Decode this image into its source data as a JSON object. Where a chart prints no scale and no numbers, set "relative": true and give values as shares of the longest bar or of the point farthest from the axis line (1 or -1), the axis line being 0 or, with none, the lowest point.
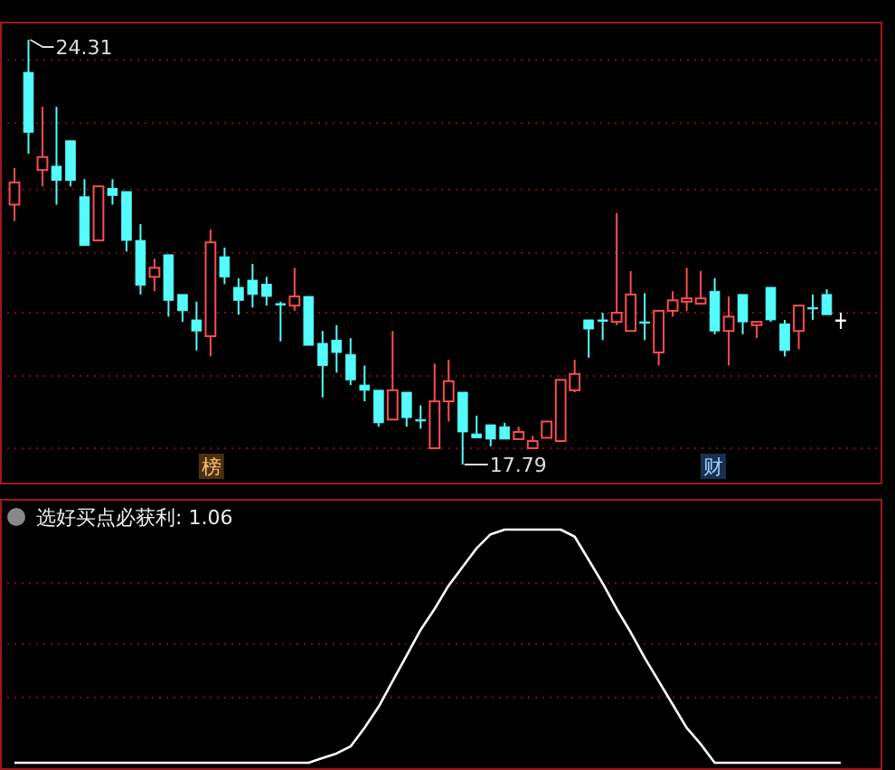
{
  "chart_data": [
    {
      "type": "candlestick",
      "categories": [
        null,
        null,
        null,
        null,
        null,
        null,
        null,
        null,
        null,
        null,
        null,
        null,
        null,
        null,
        null,
        null,
        null,
        null,
        null,
        null,
        null,
        null,
        null,
        null,
        null,
        null,
        null,
        null,
        null,
        null,
        null,
        null,
        null,
        null,
        null,
        null,
        null,
        null,
        null,
        null,
        null,
        null,
        null,
        null,
        null,
        null,
        null,
        null,
        null,
        null,
        null,
        null,
        null,
        null,
        null,
        null,
        null,
        null,
        null,
        null
      ],
      "ohlc": [
        [
          21.78,
          22.34,
          21.53,
          22.12
        ],
        [
          23.81,
          24.31,
          22.56,
          22.89
        ],
        [
          22.31,
          23.28,
          22.06,
          22.51
        ],
        [
          22.37,
          23.28,
          21.78,
          22.15
        ],
        [
          22.76,
          22.76,
          22.06,
          22.15
        ],
        [
          21.9,
          22.17,
          21.15,
          21.15
        ],
        [
          21.23,
          22.06,
          21.23,
          22.06
        ],
        [
          22.03,
          22.17,
          21.78,
          21.92
        ],
        [
          21.98,
          21.98,
          21.06,
          21.23
        ],
        [
          21.23,
          21.48,
          20.4,
          20.54
        ],
        [
          20.67,
          20.95,
          20.45,
          20.81
        ],
        [
          21.01,
          21.01,
          20.06,
          20.31
        ],
        [
          20.4,
          20.4,
          19.98,
          20.15
        ],
        [
          20.01,
          20.29,
          19.54,
          19.84
        ],
        [
          19.76,
          21.4,
          19.45,
          21.2
        ],
        [
          20.98,
          21.12,
          20.56,
          20.67
        ],
        [
          20.51,
          20.65,
          20.09,
          20.31
        ],
        [
          20.62,
          20.87,
          20.2,
          20.4
        ],
        [
          20.56,
          20.67,
          20.23,
          20.37
        ],
        [
          20.26,
          20.29,
          19.68,
          20.26
        ],
        [
          20.23,
          20.81,
          20.15,
          20.37
        ],
        [
          20.37,
          20.37,
          19.62,
          19.62
        ],
        [
          19.65,
          19.84,
          18.82,
          19.31
        ],
        [
          19.7,
          19.93,
          19.2,
          19.51
        ],
        [
          19.48,
          19.73,
          19.01,
          19.09
        ],
        [
          19.01,
          19.31,
          18.76,
          18.93
        ],
        [
          18.93,
          18.93,
          18.37,
          18.43
        ],
        [
          18.48,
          19.84,
          18.48,
          18.93
        ],
        [
          18.9,
          18.9,
          18.37,
          18.51
        ],
        [
          18.48,
          18.7,
          18.34,
          18.48
        ],
        [
          18.04,
          19.34,
          18.04,
          18.76
        ],
        [
          18.76,
          19.4,
          18.45,
          19.07
        ],
        [
          18.9,
          18.9,
          17.79,
          18.29
        ],
        [
          18.26,
          18.54,
          18.2,
          18.2
        ],
        [
          18.4,
          18.4,
          18.07,
          18.18
        ],
        [
          18.37,
          18.43,
          18.18,
          18.18
        ],
        [
          18.18,
          18.37,
          18.18,
          18.29
        ],
        [
          18.04,
          18.23,
          18.04,
          18.15
        ],
        [
          18.2,
          18.45,
          18.2,
          18.45
        ],
        [
          18.15,
          19.09,
          18.15,
          19.09
        ],
        [
          18.93,
          19.4,
          18.9,
          19.18
        ],
        [
          20.01,
          20.01,
          19.43,
          19.87
        ],
        [
          20.01,
          20.12,
          19.7,
          20.01
        ],
        [
          19.98,
          21.65,
          19.93,
          20.12
        ],
        [
          19.84,
          20.76,
          19.84,
          20.4
        ],
        [
          19.98,
          20.42,
          19.7,
          19.98
        ],
        [
          19.51,
          20.15,
          19.31,
          20.15
        ],
        [
          20.15,
          20.45,
          20.06,
          20.31
        ],
        [
          20.29,
          20.81,
          20.15,
          20.34
        ],
        [
          20.26,
          20.76,
          20.26,
          20.34
        ],
        [
          20.45,
          20.65,
          19.79,
          19.84
        ],
        [
          19.84,
          20.37,
          19.31,
          20.06
        ],
        [
          20.4,
          20.4,
          19.79,
          19.98
        ],
        [
          19.93,
          19.98,
          19.73,
          19.98
        ],
        [
          20.51,
          20.51,
          19.98,
          20.01
        ],
        [
          19.95,
          20.01,
          19.45,
          19.54
        ],
        [
          19.84,
          20.23,
          19.56,
          20.23
        ],
        [
          20.2,
          20.4,
          20.01,
          20.2
        ],
        [
          20.4,
          20.48,
          20.09,
          20.09
        ],
        [
          20.01,
          20.12,
          19.87,
          20.01
        ]
      ],
      "colors": [
        "#ff4d4d",
        "#54fcfc",
        "#ff4d4d",
        "#54fcfc",
        "#54fcfc",
        "#54fcfc",
        "#ff4d4d",
        "#54fcfc",
        "#54fcfc",
        "#54fcfc",
        "#ff4d4d",
        "#54fcfc",
        "#54fcfc",
        "#54fcfc",
        "#ff4d4d",
        "#54fcfc",
        "#54fcfc",
        "#54fcfc",
        "#54fcfc",
        "#54fcfc",
        "#ff4d4d",
        "#54fcfc",
        "#54fcfc",
        "#54fcfc",
        "#54fcfc",
        "#54fcfc",
        "#54fcfc",
        "#ff4d4d",
        "#54fcfc",
        "#54fcfc",
        "#ff4d4d",
        "#ff4d4d",
        "#54fcfc",
        "#54fcfc",
        "#54fcfc",
        "#54fcfc",
        "#ff4d4d",
        "#ff4d4d",
        "#ff4d4d",
        "#ff4d4d",
        "#ff4d4d",
        "#54fcfc",
        "#54fcfc",
        "#ff4d4d",
        "#ff4d4d",
        "#54fcfc",
        "#ff4d4d",
        "#ff4d4d",
        "#ff4d4d",
        "#ff4d4d",
        "#54fcfc",
        "#ff4d4d",
        "#54fcfc",
        "#ff4d4d",
        "#54fcfc",
        "#54fcfc",
        "#ff4d4d",
        "#54fcfc",
        "#54fcfc",
        "#ffffff"
      ],
      "annotations": [
        "24.31",
        "17.79",
        "榜",
        "财"
      ],
      "ref_lines": [
        {
          "axis": "y",
          "value": 24.0,
          "color": "#7a1010",
          "line_style": "dotted"
        },
        {
          "axis": "y",
          "value": 23.03,
          "color": "#7a1010",
          "line_style": "dotted"
        },
        {
          "axis": "y",
          "value": 22.01,
          "color": "#7a1010",
          "line_style": "dotted"
        },
        {
          "axis": "y",
          "value": 21.04,
          "color": "#7a1010",
          "line_style": "dotted"
        },
        {
          "axis": "y",
          "value": 20.12,
          "color": "#7a1010",
          "line_style": "dotted"
        },
        {
          "axis": "y",
          "value": 19.15,
          "color": "#7a1010",
          "line_style": "dotted"
        },
        {
          "axis": "y",
          "value": 18.04,
          "color": "#7a1010",
          "line_style": "dotted"
        }
      ]
    },
    {
      "type": "line",
      "title": "选好买点必获利: 1.06",
      "relative": true,
      "categories": [
        null,
        null,
        null,
        null,
        null,
        null,
        null,
        null,
        null,
        null,
        null,
        null,
        null,
        null,
        null,
        null,
        null,
        null,
        null,
        null,
        null,
        null,
        null,
        null,
        null,
        null,
        null,
        null,
        null,
        null,
        null,
        null,
        null,
        null,
        null,
        null,
        null,
        null,
        null,
        null,
        null,
        null,
        null,
        null,
        null,
        null,
        null,
        null,
        null,
        null,
        null,
        null,
        null,
        null,
        null,
        null,
        null,
        null,
        null,
        null
      ],
      "series": [
        {
          "color": "#ffffff",
          "values": [
            0,
            0,
            0,
            0,
            0,
            0,
            0,
            0,
            0,
            0,
            0,
            0,
            0,
            0,
            0,
            0,
            0,
            0,
            0,
            0,
            0,
            0,
            0.02,
            0.04,
            0.07,
            0.15,
            0.24,
            0.35,
            0.46,
            0.57,
            0.66,
            0.76,
            0.84,
            0.92,
            0.98,
            1,
            1,
            1,
            1,
            1,
            0.97,
            0.87,
            0.77,
            0.66,
            0.56,
            0.45,
            0.35,
            0.25,
            0.15,
            0.08,
            0,
            0,
            0,
            0,
            0,
            0,
            0,
            0,
            0,
            0
          ]
        }
      ],
      "ref_lines": [
        {
          "axis": "y",
          "value": 0.77,
          "color": "#7a1010",
          "line_style": "dotted"
        },
        {
          "axis": "y",
          "value": 0.51,
          "color": "#7a1010",
          "line_style": "dotted"
        },
        {
          "axis": "y",
          "value": 0.28,
          "color": "#7a1010",
          "line_style": "dotted"
        }
      ]
    }
  ]
}
